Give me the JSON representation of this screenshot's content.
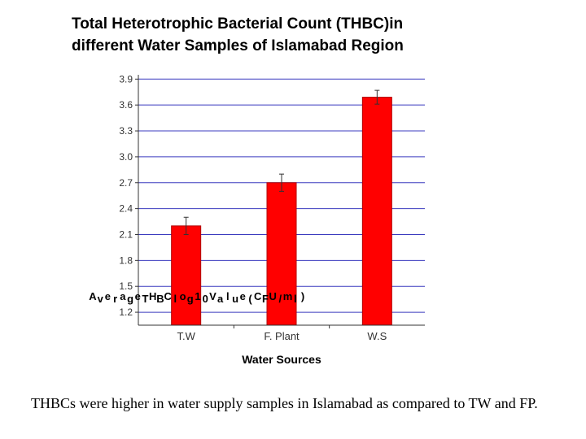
{
  "slide": {
    "title_line1": "Total Heterotrophic Bacterial Count (THBC)in",
    "title_line2": "different Water Samples of Islamabad Region",
    "caption": "THBCs were higher in water supply samples in Islamabad as compared to TW and FP."
  },
  "chart_data": {
    "type": "bar",
    "title": "Total Heterotrophic Bacterial Count (THBC)in different Water Samples of Islamabad Region",
    "categories": [
      "T.W",
      "F. Plant",
      "W.S"
    ],
    "values": [
      2.2,
      2.7,
      3.69
    ],
    "errors": [
      0.1,
      0.1,
      0.08
    ],
    "xlabel": "Water Sources",
    "ylabel": "Average THBC log10 value (CFU/ml)",
    "ylabel_glyphs": [
      "A",
      "v",
      "e",
      "r",
      "a",
      "g",
      "e",
      "T",
      "H",
      "B",
      "C",
      "l",
      "o",
      "g",
      "1",
      "0",
      "V",
      "a",
      "l",
      "u",
      "e",
      "(",
      "C",
      "F",
      "U",
      "/",
      "m",
      "l",
      ")"
    ],
    "ylim": [
      1.05,
      3.95
    ],
    "yticks": [
      "1.2",
      "1.5",
      "1.8",
      "2.1",
      "2.4",
      "2.7",
      "3.0",
      "3.3",
      "3.6",
      "3.9"
    ],
    "grid": true,
    "colors": {
      "bar": "#ff0000",
      "bar_edge": "#b00000",
      "grid": "#3b3bbf",
      "axis": "#333333"
    }
  }
}
